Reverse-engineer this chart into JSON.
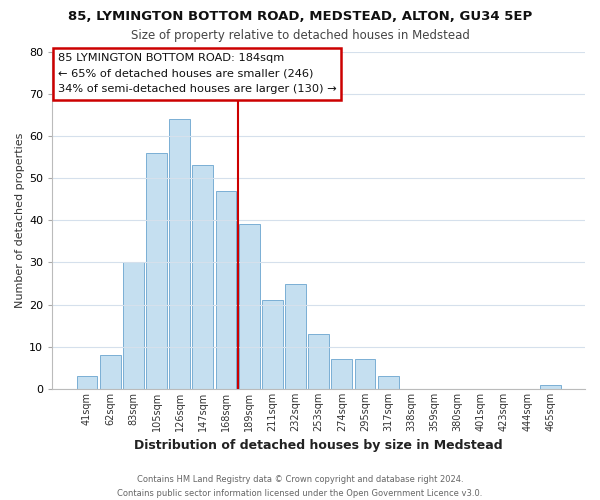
{
  "title1": "85, LYMINGTON BOTTOM ROAD, MEDSTEAD, ALTON, GU34 5EP",
  "title2": "Size of property relative to detached houses in Medstead",
  "xlabel": "Distribution of detached houses by size in Medstead",
  "ylabel": "Number of detached properties",
  "bar_labels": [
    "41sqm",
    "62sqm",
    "83sqm",
    "105sqm",
    "126sqm",
    "147sqm",
    "168sqm",
    "189sqm",
    "211sqm",
    "232sqm",
    "253sqm",
    "274sqm",
    "295sqm",
    "317sqm",
    "338sqm",
    "359sqm",
    "380sqm",
    "401sqm",
    "423sqm",
    "444sqm",
    "465sqm"
  ],
  "bar_heights": [
    3,
    8,
    30,
    56,
    64,
    53,
    47,
    39,
    21,
    25,
    13,
    7,
    7,
    3,
    0,
    0,
    0,
    0,
    0,
    0,
    1
  ],
  "bar_color": "#c5dff0",
  "bar_edge_color": "#7aafd4",
  "annotation_text": "85 LYMINGTON BOTTOM ROAD: 184sqm\n← 65% of detached houses are smaller (246)\n34% of semi-detached houses are larger (130) →",
  "annotation_box_color": "#ffffff",
  "annotation_box_edge_color": "#cc0000",
  "red_line_x": 6.5,
  "ylim": [
    0,
    80
  ],
  "yticks": [
    0,
    10,
    20,
    30,
    40,
    50,
    60,
    70,
    80
  ],
  "footer1": "Contains HM Land Registry data © Crown copyright and database right 2024.",
  "footer2": "Contains public sector information licensed under the Open Government Licence v3.0.",
  "bg_color": "#ffffff",
  "plot_bg_color": "#ffffff",
  "grid_color": "#d5e0ec"
}
